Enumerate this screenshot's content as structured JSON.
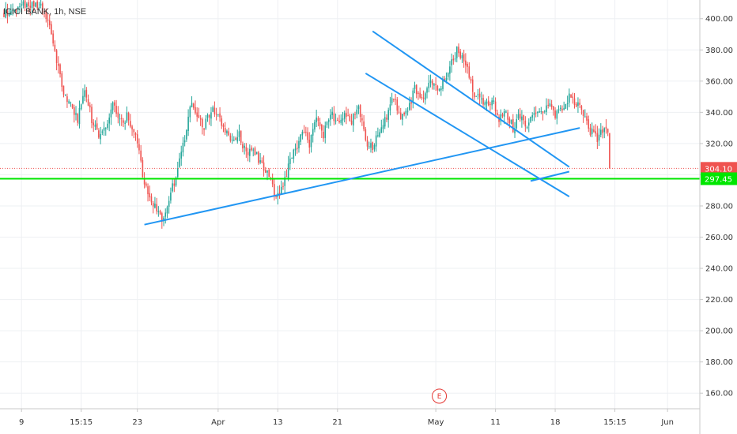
{
  "chart_data": {
    "type": "candlestick",
    "title": "ICICI BANK, 1h, NSE",
    "colors": {
      "up": "#26a69a",
      "down": "#ef5350",
      "trendline": "#2196f3",
      "support": "#00e600",
      "last_price": "#ef5350",
      "grid": "#eef0f3",
      "event": "#e53935"
    },
    "y_axis": {
      "min": 150,
      "max": 412,
      "ticks": [
        "400.00",
        "380.00",
        "360.00",
        "340.00",
        "320.00",
        "300.00",
        "280.00",
        "260.00",
        "240.00",
        "220.00",
        "200.00",
        "180.00",
        "160.00"
      ],
      "tick_values": [
        400,
        380,
        360,
        340,
        320,
        300,
        280,
        260,
        240,
        220,
        200,
        180,
        160
      ]
    },
    "x_axis": {
      "ticks": [
        {
          "label": "9",
          "i": 10
        },
        {
          "label": "15:15",
          "i": 44
        },
        {
          "label": "23",
          "i": 76
        },
        {
          "label": "Apr",
          "i": 122
        },
        {
          "label": "13",
          "i": 156
        },
        {
          "label": "21",
          "i": 190
        },
        {
          "label": "May",
          "i": 246
        },
        {
          "label": "11",
          "i": 280
        },
        {
          "label": "18",
          "i": 314
        },
        {
          "label": "15:15",
          "i": 348
        },
        {
          "label": "Jun",
          "i": 378
        }
      ]
    },
    "candle_count": 346,
    "anchors": [
      [
        0,
        404
      ],
      [
        10,
        408
      ],
      [
        16,
        410
      ],
      [
        22,
        406
      ],
      [
        26,
        395
      ],
      [
        30,
        372
      ],
      [
        34,
        352
      ],
      [
        38,
        345
      ],
      [
        42,
        336
      ],
      [
        46,
        356
      ],
      [
        50,
        335
      ],
      [
        54,
        325
      ],
      [
        58,
        330
      ],
      [
        62,
        345
      ],
      [
        66,
        334
      ],
      [
        70,
        337
      ],
      [
        74,
        330
      ],
      [
        78,
        310
      ],
      [
        80,
        292
      ],
      [
        84,
        285
      ],
      [
        88,
        275
      ],
      [
        90,
        270
      ],
      [
        94,
        285
      ],
      [
        98,
        298
      ],
      [
        102,
        318
      ],
      [
        106,
        345
      ],
      [
        110,
        340
      ],
      [
        114,
        330
      ],
      [
        118,
        342
      ],
      [
        122,
        336
      ],
      [
        126,
        328
      ],
      [
        130,
        322
      ],
      [
        134,
        325
      ],
      [
        138,
        314
      ],
      [
        142,
        318
      ],
      [
        146,
        308
      ],
      [
        150,
        300
      ],
      [
        152,
        296
      ],
      [
        154,
        286
      ],
      [
        158,
        290
      ],
      [
        162,
        305
      ],
      [
        166,
        316
      ],
      [
        170,
        330
      ],
      [
        174,
        320
      ],
      [
        178,
        335
      ],
      [
        182,
        326
      ],
      [
        186,
        340
      ],
      [
        190,
        333
      ],
      [
        194,
        340
      ],
      [
        198,
        335
      ],
      [
        202,
        345
      ],
      [
        206,
        320
      ],
      [
        210,
        318
      ],
      [
        214,
        330
      ],
      [
        218,
        338
      ],
      [
        222,
        350
      ],
      [
        226,
        335
      ],
      [
        230,
        340
      ],
      [
        234,
        355
      ],
      [
        238,
        348
      ],
      [
        242,
        360
      ],
      [
        246,
        355
      ],
      [
        250,
        358
      ],
      [
        254,
        368
      ],
      [
        258,
        380
      ],
      [
        262,
        375
      ],
      [
        266,
        360
      ],
      [
        268,
        350
      ],
      [
        270,
        352
      ],
      [
        274,
        345
      ],
      [
        278,
        348
      ],
      [
        282,
        335
      ],
      [
        286,
        340
      ],
      [
        290,
        330
      ],
      [
        294,
        338
      ],
      [
        298,
        332
      ],
      [
        302,
        342
      ],
      [
        306,
        340
      ],
      [
        310,
        345
      ],
      [
        314,
        338
      ],
      [
        318,
        342
      ],
      [
        322,
        350
      ],
      [
        326,
        346
      ],
      [
        330,
        340
      ],
      [
        334,
        328
      ],
      [
        338,
        322
      ],
      [
        342,
        330
      ],
      [
        345,
        325
      ]
    ],
    "last_price": 304.1,
    "price_tags": [
      {
        "label": "304.10",
        "value": 304.1,
        "color": "#ef5350"
      },
      {
        "label": "297.45",
        "value": 297.45,
        "color": "#00e600"
      }
    ],
    "support_level": 297.45,
    "trendlines": [
      {
        "i1": 80,
        "v1": 268,
        "i2": 328,
        "v2": 330
      },
      {
        "i1": 210,
        "v1": 392,
        "i2": 322,
        "v2": 305
      },
      {
        "i1": 206,
        "v1": 365,
        "i2": 322,
        "v2": 286
      },
      {
        "i1": 300,
        "v1": 296,
        "i2": 322,
        "v2": 302
      }
    ],
    "events": [
      {
        "label": "E",
        "i": 248
      }
    ]
  }
}
